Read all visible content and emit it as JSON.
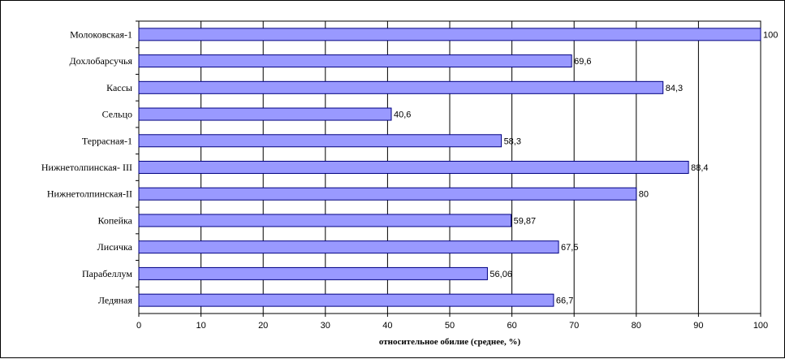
{
  "chart_data": {
    "type": "bar",
    "orientation": "horizontal",
    "categories": [
      "Молоковская-1",
      "Дохлобарсучья",
      "Кассы",
      "Сельцо",
      "Террасная-1",
      "Нижнетолпинская- III",
      "Нижнетолпинская-II",
      "Копейка",
      "Лисичка",
      "Парабеллум",
      "Ледяная"
    ],
    "values": [
      100,
      69.6,
      84.3,
      40.6,
      58.3,
      88.4,
      80,
      59.87,
      67.5,
      56.06,
      66.7
    ],
    "data_labels": [
      "100",
      "69,6",
      "84,3",
      "40,6",
      "58,3",
      "88,4",
      "80",
      "59,87",
      "67,5",
      "56,06",
      "66,7"
    ],
    "xlabel": "относительное обилие (среднее, %)",
    "ylabel": "",
    "title": "",
    "xlim": [
      0,
      100
    ],
    "xticks": [
      "0",
      "10",
      "20",
      "30",
      "40",
      "50",
      "60",
      "70",
      "80",
      "90",
      "100"
    ],
    "grid": "vertical",
    "legend": "none",
    "bar_color": "#9999ff",
    "bar_border": "#000080"
  }
}
